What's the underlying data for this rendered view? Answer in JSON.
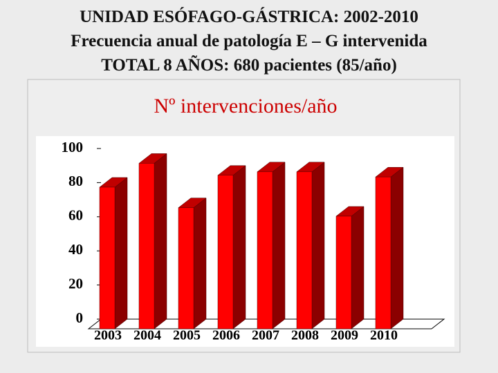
{
  "header": {
    "lines": [
      "UNIDAD ESÓFAGO-GÁSTRICA: 2002-2010",
      "Frecuencia anual de patología E – G intervenida",
      "TOTAL 8 AÑOS: 680 pacientes (85/año)"
    ]
  },
  "chart_data": {
    "type": "bar3d",
    "title": "Nº intervenciones/año",
    "categories": [
      "2003",
      "2004",
      "2005",
      "2006",
      "2007",
      "2008",
      "2009",
      "2010"
    ],
    "values": [
      83,
      97,
      71,
      90,
      92,
      92,
      66,
      89
    ],
    "color": "#ff0000",
    "side_color": "#8b0000",
    "top_color": "#c00000",
    "ylim": [
      0,
      100
    ],
    "yticks": [
      0,
      20,
      40,
      60,
      80,
      100
    ]
  }
}
